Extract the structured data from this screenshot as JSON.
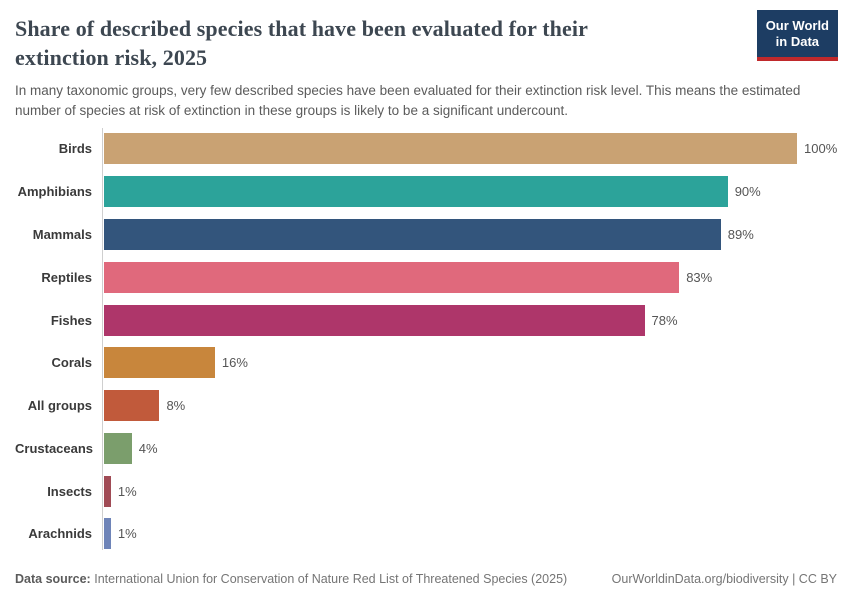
{
  "header": {
    "title": "Share of described species that have been evaluated for their extinction risk, 2025",
    "subtitle": "In many taxonomic groups, very few described species have been evaluated for their extinction risk level. This means the estimated number of species at risk of extinction in these groups is likely to be a significant undercount.",
    "logo": {
      "line1": "Our World",
      "line2": "in Data",
      "bg_color": "#1d3d63",
      "accent_color": "#c0292b"
    }
  },
  "chart_data": {
    "type": "bar",
    "orientation": "horizontal",
    "title": "Share of described species that have been evaluated for their extinction risk, 2025",
    "xlabel": "",
    "ylabel": "",
    "xlim": [
      0,
      100
    ],
    "unit": "%",
    "grid": false,
    "categories": [
      "Birds",
      "Amphibians",
      "Mammals",
      "Reptiles",
      "Fishes",
      "Corals",
      "All groups",
      "Crustaceans",
      "Insects",
      "Arachnids"
    ],
    "values": [
      100,
      90,
      89,
      83,
      78,
      16,
      8,
      4,
      1,
      1
    ],
    "value_labels": [
      "100%",
      "90%",
      "89%",
      "83%",
      "78%",
      "16%",
      "8%",
      "4%",
      "1%",
      "1%"
    ],
    "bar_colors": [
      "#c9a273",
      "#2ca39a",
      "#33557c",
      "#e0697c",
      "#ae366a",
      "#c8863c",
      "#c15a3b",
      "#7b9e6c",
      "#a04b55",
      "#6e84b8"
    ]
  },
  "footer": {
    "source_label": "Data source:",
    "source_text": "International Union for Conservation of Nature Red List of Threatened Species (2025)",
    "attribution": "OurWorldinData.org/biodiversity | CC BY"
  }
}
